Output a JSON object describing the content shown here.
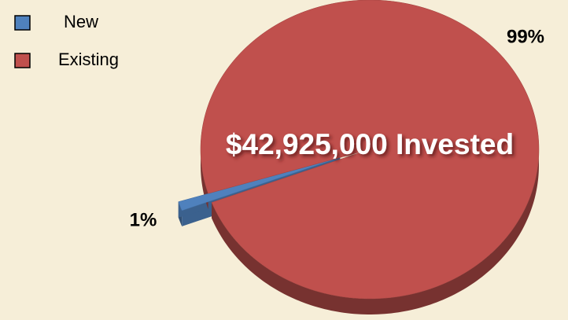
{
  "chart_data": {
    "type": "pie",
    "annotation": "$42,925,000 Invested",
    "categories": [
      "New",
      "Existing"
    ],
    "values": [
      1,
      99
    ],
    "value_labels": [
      "1%",
      "99%"
    ],
    "colors": [
      "#4f81bd",
      "#c0504d"
    ],
    "legend": "top-left"
  }
}
